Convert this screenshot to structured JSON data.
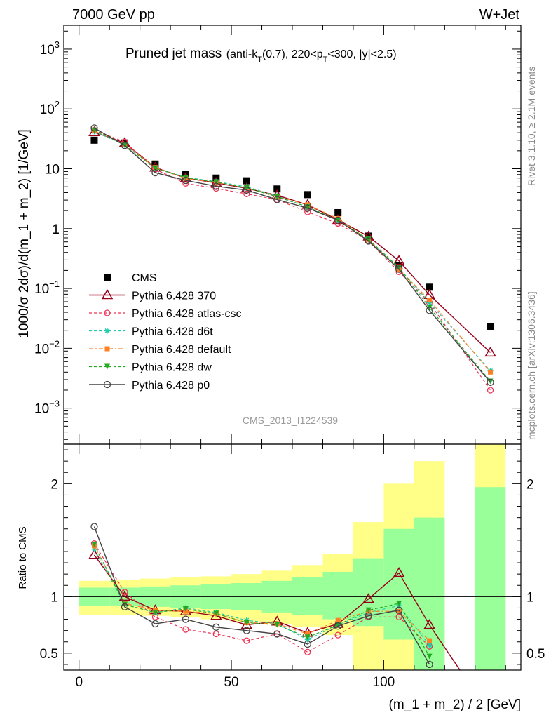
{
  "header": {
    "left": "7000 GeV pp",
    "right": "W+Jet"
  },
  "side": {
    "rivet": "Rivet 3.1.10, ≥ 2.1M events",
    "mcplots": "mcplots.cern.ch [arXiv:1306.3436]"
  },
  "title": {
    "main": "Pruned jet mass",
    "cuts": "(anti-k_T(0.7), 220<p_T<300, |y|<2.5)"
  },
  "analysis_tag": "CMS_2013_I1224539",
  "colors": {
    "cms": "#000000",
    "p370": "#99001a",
    "atlas": "#ee3355",
    "d6t": "#22ccaa",
    "default": "#ff7f27",
    "dw": "#22aa22",
    "p0": "#444444",
    "band_outer": "#ffff88",
    "band_inner": "#99ff99"
  },
  "chart_data": [
    {
      "type": "line",
      "scale": "log",
      "title": "Pruned jet mass (anti-k_T(0.7), 220<p_T<300, |y|<2.5)",
      "ylabel": "1000/σ 2dσ)/d(m_1 + m_2) [1/GeV]",
      "xlim": [
        -5,
        145
      ],
      "ylim": [
        0.00025,
        2500
      ],
      "yticks": [
        {
          "v": 0.001,
          "base": "10",
          "exp": "−3"
        },
        {
          "v": 0.01,
          "base": "10",
          "exp": "−2"
        },
        {
          "v": 0.1,
          "base": "10",
          "exp": "−1"
        },
        {
          "v": 1,
          "base": "1",
          "exp": ""
        },
        {
          "v": 10,
          "base": "10",
          "exp": ""
        },
        {
          "v": 100,
          "base": "10",
          "exp": "2"
        },
        {
          "v": 1000,
          "base": "10",
          "exp": "3"
        }
      ],
      "x": [
        5,
        15,
        25,
        35,
        45,
        55,
        65,
        75,
        85,
        95,
        105,
        115,
        135
      ],
      "series": [
        {
          "key": "cms",
          "name": "CMS",
          "values": [
            30,
            27,
            12,
            8,
            7,
            6.3,
            4.6,
            3.7,
            1.85,
            0.75,
            0.24,
            0.105,
            0.023
          ]
        },
        {
          "key": "p370",
          "name": "Pythia 6.428 370",
          "values": [
            41,
            27,
            10.5,
            7,
            5.8,
            4.7,
            3.6,
            2.5,
            1.4,
            0.74,
            0.29,
            0.078,
            0.0085
          ]
        },
        {
          "key": "atlas",
          "name": "Pythia 6.428 atlas-csc",
          "values": [
            44,
            28,
            9.8,
            5.7,
            4.7,
            3.8,
            3.05,
            1.9,
            1.22,
            0.62,
            0.19,
            0.058,
            0.002
          ]
        },
        {
          "key": "d6t",
          "name": "Pythia 6.428 d6t",
          "values": [
            42,
            25,
            10.3,
            7.2,
            6.1,
            5.0,
            3.5,
            2.3,
            1.38,
            0.65,
            0.22,
            0.058,
            0.0042
          ]
        },
        {
          "key": "default",
          "name": "Pythia 6.428 default",
          "values": [
            43,
            25.5,
            10.5,
            6.9,
            5.9,
            4.8,
            3.45,
            2.5,
            1.47,
            0.65,
            0.21,
            0.064,
            0.004
          ]
        },
        {
          "key": "dw",
          "name": "Pythia 6.428 dw",
          "values": [
            44,
            25,
            10.2,
            7.1,
            6.0,
            4.8,
            3.4,
            2.3,
            1.38,
            0.66,
            0.225,
            0.048,
            0.0028
          ]
        },
        {
          "key": "p0",
          "name": "Pythia 6.428 p0",
          "values": [
            48,
            24.5,
            8.6,
            6.4,
            5.1,
            4.4,
            3.05,
            2.2,
            1.38,
            0.62,
            0.21,
            0.043,
            0.0027
          ]
        }
      ]
    },
    {
      "type": "line",
      "ylabel": "Ratio to CMS",
      "xlabel": "(m_1 + m_2) / 2 [GeV]",
      "xlim": [
        -5,
        145
      ],
      "ylim": [
        0.35,
        2.35
      ],
      "yticks": [
        0.5,
        1,
        2
      ],
      "xticks": [
        0,
        50,
        100
      ],
      "bins": [
        {
          "lo": 0,
          "hi": 10,
          "inner": [
            0.92,
            1.08
          ],
          "outer": [
            0.84,
            1.14
          ]
        },
        {
          "lo": 10,
          "hi": 20,
          "inner": [
            0.92,
            1.08
          ],
          "outer": [
            0.84,
            1.15
          ]
        },
        {
          "lo": 20,
          "hi": 30,
          "inner": [
            0.91,
            1.09
          ],
          "outer": [
            0.83,
            1.16
          ]
        },
        {
          "lo": 30,
          "hi": 40,
          "inner": [
            0.9,
            1.1
          ],
          "outer": [
            0.82,
            1.17
          ]
        },
        {
          "lo": 40,
          "hi": 50,
          "inner": [
            0.89,
            1.11
          ],
          "outer": [
            0.8,
            1.18
          ]
        },
        {
          "lo": 50,
          "hi": 60,
          "inner": [
            0.88,
            1.12
          ],
          "outer": [
            0.78,
            1.2
          ]
        },
        {
          "lo": 60,
          "hi": 70,
          "inner": [
            0.86,
            1.14
          ],
          "outer": [
            0.76,
            1.23
          ]
        },
        {
          "lo": 70,
          "hi": 80,
          "inner": [
            0.84,
            1.17
          ],
          "outer": [
            0.73,
            1.28
          ]
        },
        {
          "lo": 80,
          "hi": 90,
          "inner": [
            0.8,
            1.22
          ],
          "outer": [
            0.66,
            1.38
          ]
        },
        {
          "lo": 90,
          "hi": 100,
          "inner": [
            0.74,
            1.34
          ],
          "outer": [
            0.35,
            1.66
          ]
        },
        {
          "lo": 100,
          "hi": 110,
          "inner": [
            0.62,
            1.6
          ],
          "outer": [
            0.35,
            2.0
          ]
        },
        {
          "lo": 110,
          "hi": 120,
          "inner": [
            0.35,
            1.7
          ],
          "outer": [
            0.35,
            2.2
          ]
        },
        {
          "lo": 130,
          "hi": 140,
          "inner": [
            0.35,
            1.97
          ],
          "outer": [
            0.35,
            2.35
          ]
        }
      ],
      "x": [
        5,
        15,
        25,
        35,
        45,
        55,
        65,
        75,
        85,
        95,
        105,
        115,
        125,
        135
      ],
      "series": [
        {
          "key": "p370",
          "name": "Pythia 6.428 370",
          "values": [
            1.37,
            1.0,
            0.88,
            0.87,
            0.83,
            0.75,
            0.78,
            0.68,
            0.76,
            0.98,
            1.21,
            0.75,
            0.35,
            null
          ]
        },
        {
          "key": "atlas",
          "name": "Pythia 6.428 atlas-csc",
          "values": [
            1.47,
            1.04,
            0.82,
            0.71,
            0.67,
            0.61,
            0.67,
            0.51,
            0.66,
            0.82,
            0.82,
            0.56,
            null,
            null
          ]
        },
        {
          "key": "d6t",
          "name": "Pythia 6.428 d6t",
          "values": [
            1.42,
            0.93,
            0.86,
            0.9,
            0.86,
            0.79,
            0.76,
            0.62,
            0.75,
            0.86,
            0.92,
            0.57,
            null,
            null
          ]
        },
        {
          "key": "default",
          "name": "Pythia 6.428 default",
          "values": [
            1.45,
            0.94,
            0.88,
            0.87,
            0.85,
            0.77,
            0.76,
            0.67,
            0.79,
            0.87,
            0.87,
            0.61,
            null,
            null
          ]
        },
        {
          "key": "dw",
          "name": "Pythia 6.428 dw",
          "values": [
            1.46,
            0.93,
            0.86,
            0.89,
            0.85,
            0.77,
            0.75,
            0.64,
            0.75,
            0.88,
            0.94,
            0.47,
            null,
            null
          ]
        },
        {
          "key": "p0",
          "name": "Pythia 6.428 p0",
          "values": [
            1.62,
            0.91,
            0.76,
            0.8,
            0.73,
            0.7,
            0.67,
            0.58,
            0.74,
            0.83,
            0.88,
            0.4,
            null,
            null
          ]
        }
      ]
    }
  ]
}
